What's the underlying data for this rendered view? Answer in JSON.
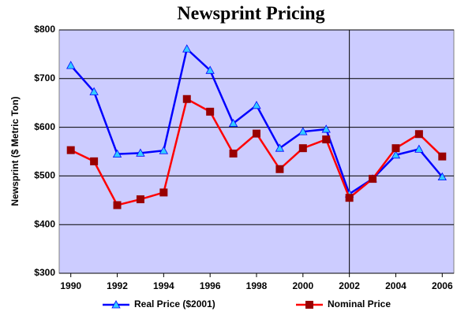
{
  "chart_data": {
    "type": "line",
    "title": "Newsprint Pricing",
    "y_label": "Newsprint  ($ Metric Ton)",
    "x": [
      1990,
      1991,
      1992,
      1993,
      1994,
      1995,
      1996,
      1997,
      1998,
      1999,
      2000,
      2001,
      2002,
      2003,
      2004,
      2005,
      2006
    ],
    "xlim": [
      1989.5,
      2006.5
    ],
    "xticks": [
      1990,
      1992,
      1994,
      1996,
      1998,
      2000,
      2002,
      2004,
      2006
    ],
    "ylim": [
      300,
      800
    ],
    "yticks": [
      {
        "value": 300,
        "label": "$300"
      },
      {
        "value": 400,
        "label": "$400"
      },
      {
        "value": 500,
        "label": "$500"
      },
      {
        "value": 600,
        "label": "$600"
      },
      {
        "value": 700,
        "label": "$700"
      },
      {
        "value": 800,
        "label": "$800"
      }
    ],
    "grid": true,
    "background": "#ccccff",
    "reference_line_x": 2002,
    "legend": "bottom",
    "series": [
      {
        "name": "Real Price ($2001)",
        "color": "#0000ff",
        "marker": "triangle",
        "marker_color": "#33ccff",
        "values": [
          727,
          673,
          545,
          547,
          552,
          761,
          717,
          608,
          645,
          557,
          591,
          596,
          463,
          494,
          543,
          555,
          498
        ]
      },
      {
        "name": "Nominal Price",
        "color": "#ff0000",
        "marker": "square",
        "marker_color": "#990000",
        "values": [
          553,
          530,
          440,
          452,
          466,
          658,
          632,
          546,
          587,
          514,
          557,
          575,
          455,
          494,
          557,
          586,
          540
        ]
      }
    ]
  }
}
